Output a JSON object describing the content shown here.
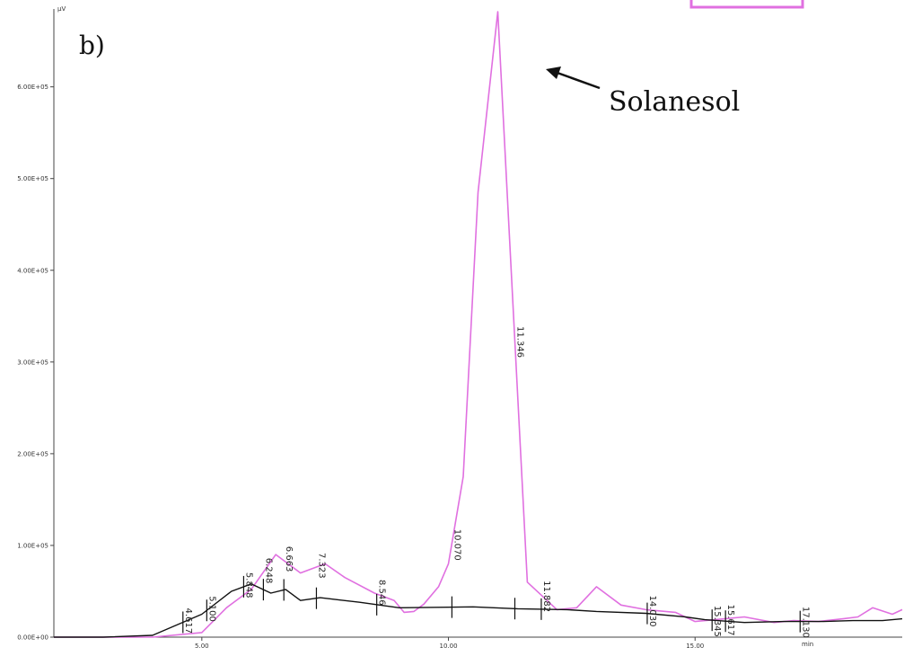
{
  "chart_data": {
    "type": "line",
    "panel_label": "b)",
    "ylabel": "µV",
    "xlabel": "",
    "x_unit_label": "min",
    "xlim": [
      2.0,
      19.2
    ],
    "ylim": [
      0,
      680000
    ],
    "x_ticks": [
      5,
      10,
      15
    ],
    "x_tick_labels": [
      "5.00",
      "10.00",
      "15.00"
    ],
    "y_ticks": [
      0,
      100000,
      200000,
      300000,
      400000,
      500000,
      600000
    ],
    "y_tick_labels": [
      "0.00E+00",
      "1.00E+05",
      "2.00E+05",
      "3.00E+05",
      "4.00E+05",
      "5.00E+05",
      "6.00E+05"
    ],
    "series": [
      {
        "role": "signal",
        "color": "#e070e0",
        "x": [
          2.0,
          3.0,
          4.0,
          5.0,
          5.5,
          6.0,
          6.5,
          7.0,
          7.5,
          7.9,
          8.5,
          8.9,
          9.1,
          9.3,
          9.5,
          9.8,
          10.0,
          10.3,
          10.6,
          11.0,
          11.6,
          12.2,
          12.6,
          13.0,
          13.5,
          14.0,
          14.6,
          15.0,
          15.6,
          16.0,
          16.6,
          17.0,
          17.5,
          18.0,
          18.3,
          18.6,
          19.0,
          19.2
        ],
        "y": [
          0,
          0,
          0,
          5000,
          32000,
          52000,
          90000,
          70000,
          80000,
          65000,
          48000,
          40000,
          27000,
          28000,
          36000,
          55000,
          80000,
          175000,
          485000,
          682000,
          60000,
          30000,
          32000,
          55000,
          35000,
          30000,
          27000,
          17000,
          20000,
          22000,
          16000,
          18000,
          17000,
          20000,
          22000,
          32000,
          25000,
          30000
        ]
      },
      {
        "role": "baseline",
        "color": "#111111",
        "x": [
          2.0,
          3.0,
          4.0,
          5.0,
          5.6,
          6.0,
          6.4,
          6.7,
          7.0,
          7.4,
          8.2,
          9.0,
          10.5,
          11.4,
          12.4,
          13.0,
          14.0,
          14.8,
          15.2,
          16.0,
          16.8,
          17.6,
          18.2,
          18.8,
          19.2
        ],
        "y": [
          0,
          0,
          2000,
          25000,
          50000,
          58000,
          48000,
          52000,
          40000,
          43000,
          38000,
          32000,
          33000,
          31000,
          30000,
          28000,
          26000,
          22000,
          19000,
          16000,
          17000,
          17000,
          18000,
          18000,
          20000
        ]
      }
    ],
    "peaks": [
      {
        "x": 4.617,
        "label": "4.617"
      },
      {
        "x": 5.1,
        "label": "5.100"
      },
      {
        "x": 5.848,
        "label": "5.848"
      },
      {
        "x": 6.248,
        "label": "6.248"
      },
      {
        "x": 6.663,
        "label": "6.663"
      },
      {
        "x": 7.323,
        "label": "7.323"
      },
      {
        "x": 8.546,
        "label": "8.546"
      },
      {
        "x": 10.07,
        "label": "10.070"
      },
      {
        "x": 11.346,
        "label": "11.346"
      },
      {
        "x": 11.882,
        "label": "11.882"
      },
      {
        "x": 14.03,
        "label": "14.030"
      },
      {
        "x": 15.345,
        "label": "15.345"
      },
      {
        "x": 15.617,
        "label": "15.617"
      },
      {
        "x": 17.13,
        "label": "17.130"
      }
    ],
    "annotations": [
      {
        "text": "Solanesol",
        "target_peak": "10.070"
      }
    ]
  }
}
